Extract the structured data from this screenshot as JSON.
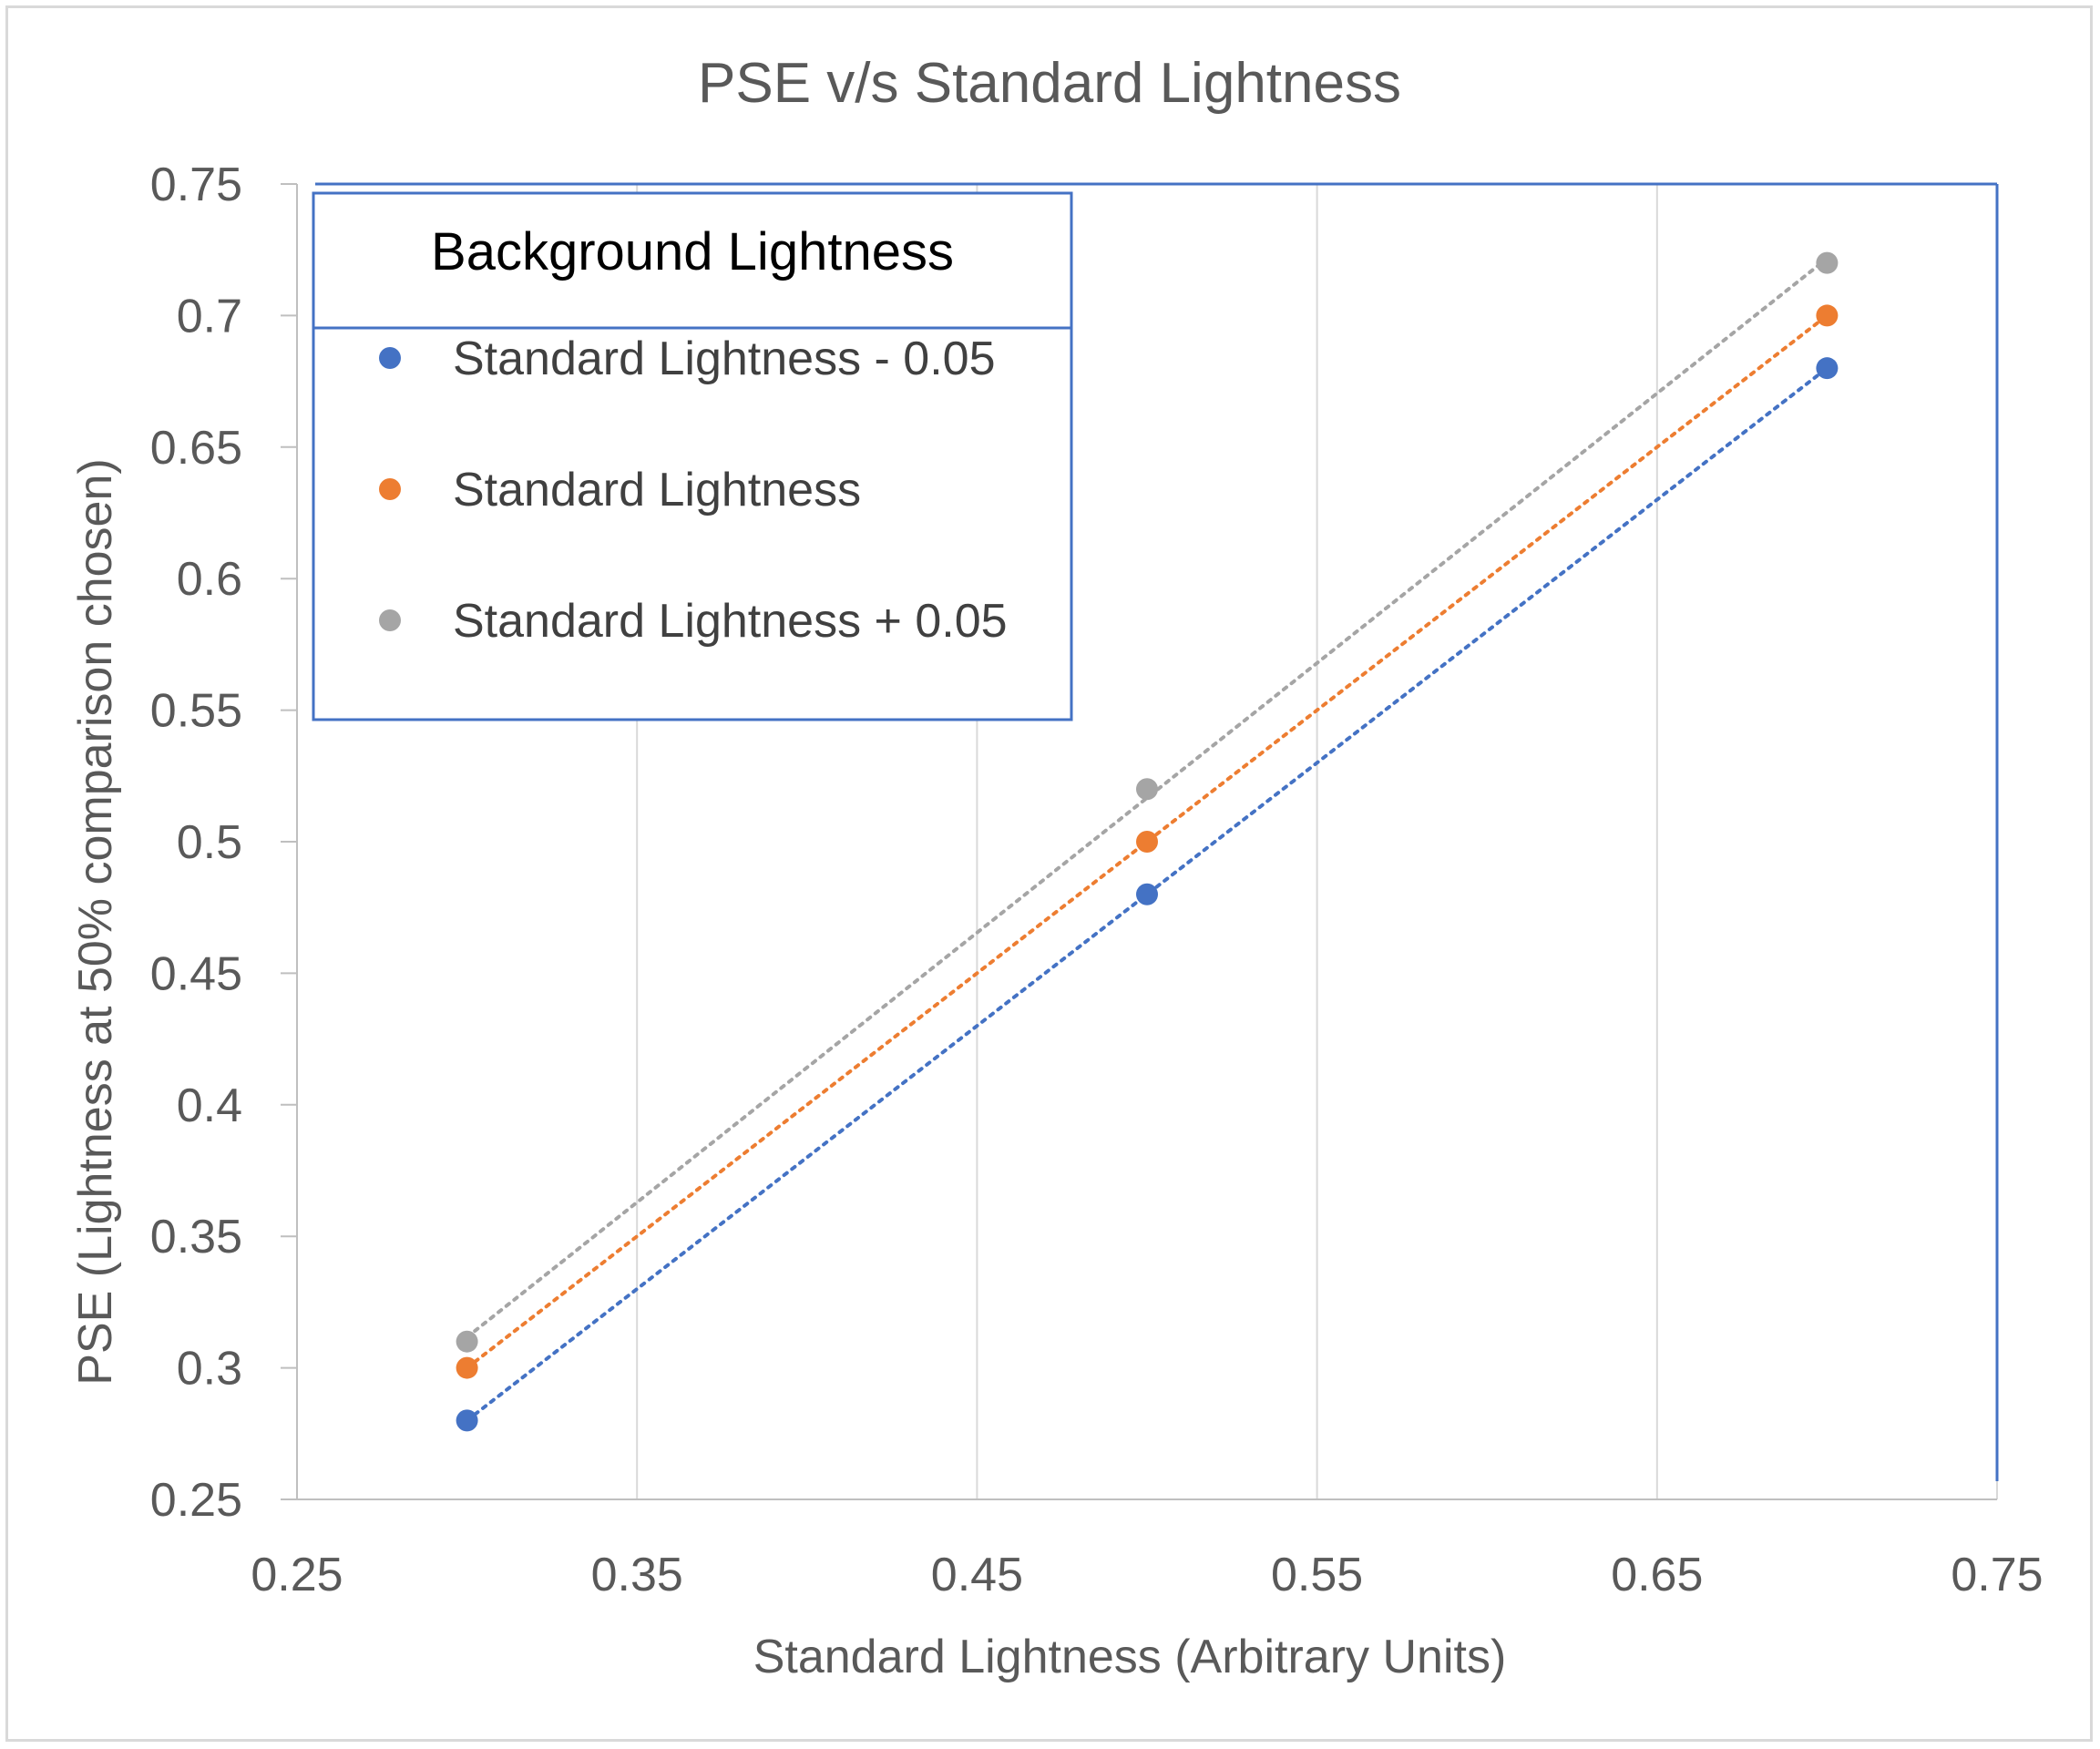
{
  "chart_data": {
    "type": "scatter",
    "title": "PSE v/s Standard Lightness",
    "xlabel": "Standard Lightness (Arbitrary Units)",
    "ylabel": "PSE (Lightness at 50% comparison chosen)",
    "xlim": [
      0.25,
      0.75
    ],
    "ylim": [
      0.25,
      0.75
    ],
    "xticks": [
      "0.25",
      "0.35",
      "0.45",
      "0.55",
      "0.65",
      "0.75"
    ],
    "yticks": [
      "0.25",
      "0.3",
      "0.35",
      "0.4",
      "0.45",
      "0.5",
      "0.55",
      "0.6",
      "0.65",
      "0.7",
      "0.75"
    ],
    "grid": "vertical",
    "trendlines": "linear dotted",
    "legend": {
      "title": "Background Lightness",
      "position": "top-left"
    },
    "series": [
      {
        "name": "Standard Lightness - 0.05",
        "color": "#4472c4",
        "x": [
          0.3,
          0.5,
          0.7
        ],
        "y": [
          0.28,
          0.48,
          0.68
        ]
      },
      {
        "name": "Standard Lightness",
        "color": "#ed7d31",
        "x": [
          0.3,
          0.5,
          0.7
        ],
        "y": [
          0.3,
          0.5,
          0.7
        ]
      },
      {
        "name": "Standard Lightness + 0.05",
        "color": "#a5a5a5",
        "x": [
          0.3,
          0.5,
          0.7
        ],
        "y": [
          0.31,
          0.52,
          0.72
        ]
      }
    ]
  }
}
